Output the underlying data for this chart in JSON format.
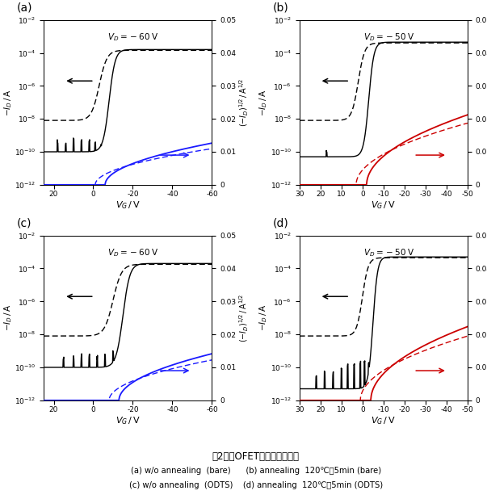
{
  "subplots": [
    {
      "label": "(a)",
      "vd_text": "$V_D = -60$ V",
      "xlim": [
        25,
        -60
      ],
      "xticks": [
        20,
        0,
        -20,
        -40,
        -60
      ],
      "sqrt_color": "#1a1aff",
      "vt_solid": -8,
      "vt_dashed": -3,
      "ss_solid": 3.5,
      "ss_dashed": 4.5,
      "I_off_solid": 1e-10,
      "I_off_dashed": 8e-09,
      "I_on": 0.00016,
      "sqrt_vt": -6,
      "sqrt_Imax": 0.00016,
      "sqrt_vt_dash": -1,
      "sqrt_Imax_dash": 0.00012,
      "spike_vg": [
        18,
        14,
        10,
        6,
        2,
        -1,
        -4
      ],
      "spike_amp": [
        4e-10,
        3e-10,
        5e-10,
        4e-10,
        6e-10,
        3e-10,
        2e-10
      ]
    },
    {
      "label": "(b)",
      "vd_text": "$V_D = -50$ V",
      "xlim": [
        30,
        -50
      ],
      "xticks": [
        30,
        20,
        10,
        0,
        -10,
        -20,
        -30,
        -40,
        -50
      ],
      "sqrt_color": "#cc0000",
      "vt_solid": -3,
      "vt_dashed": 2,
      "ss_solid": 2.8,
      "ss_dashed": 3.5,
      "I_off_solid": 5e-11,
      "I_off_dashed": 8e-09,
      "I_on": 0.00045,
      "sqrt_vt": -2,
      "sqrt_Imax": 0.00045,
      "sqrt_vt_dash": 3,
      "sqrt_Imax_dash": 0.00035,
      "spike_vg": [
        17,
        -3
      ],
      "spike_amp": [
        1e-10,
        3e-10
      ]
    },
    {
      "label": "(c)",
      "vd_text": "$V_D = -60$ V",
      "xlim": [
        25,
        -60
      ],
      "xticks": [
        20,
        0,
        -20,
        -40,
        -60
      ],
      "sqrt_color": "#1a1aff",
      "vt_solid": -15,
      "vt_dashed": -10,
      "ss_solid": 4.0,
      "ss_dashed": 5.0,
      "I_off_solid": 1e-10,
      "I_off_dashed": 8e-09,
      "I_on": 0.0002,
      "sqrt_vt": -13,
      "sqrt_Imax": 0.0002,
      "sqrt_vt_dash": -8,
      "sqrt_Imax_dash": 0.00015,
      "spike_vg": [
        15,
        10,
        6,
        2,
        -2,
        -6,
        -10,
        -13
      ],
      "spike_amp": [
        3e-10,
        4e-10,
        5e-10,
        6e-10,
        4e-10,
        5e-10,
        8e-10,
        6e-10
      ]
    },
    {
      "label": "(d)",
      "vd_text": "$V_D = -50$ V",
      "xlim": [
        30,
        -50
      ],
      "xticks": [
        30,
        20,
        10,
        0,
        -10,
        -20,
        -30,
        -40,
        -50
      ],
      "sqrt_color": "#cc0000",
      "vt_solid": -5,
      "vt_dashed": 0,
      "ss_solid": 2.5,
      "ss_dashed": 3.2,
      "I_off_solid": 5e-12,
      "I_off_dashed": 8e-09,
      "I_on": 0.0005,
      "sqrt_vt": -4,
      "sqrt_Imax": 0.0005,
      "sqrt_vt_dash": 1,
      "sqrt_Imax_dash": 0.00038,
      "spike_vg": [
        22,
        18,
        14,
        10,
        7,
        4,
        1,
        -1,
        -3
      ],
      "spike_amp": [
        3e-11,
        5e-11,
        4e-11,
        8e-11,
        1.2e-10,
        1.5e-10,
        2e-10,
        1.8e-10,
        1.5e-10
      ]
    }
  ],
  "title": "図2．　OFET素子の伝達特性",
  "cap1": "(a) w/o annealing  (bare)      (b) annealing  120℃，5min (bare)",
  "cap2": "(c) w/o annealing  (ODTS)    (d) annealing  120℃，5min (ODTS)"
}
